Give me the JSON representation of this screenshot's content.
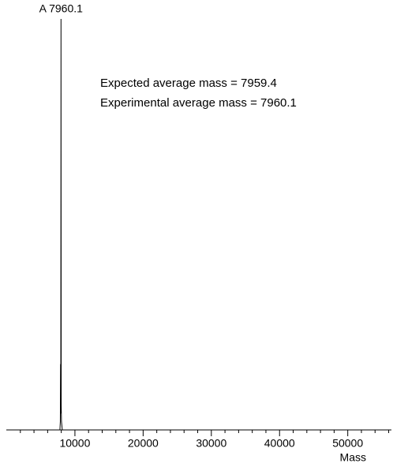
{
  "chart_data": {
    "type": "line",
    "peak_label": "A 7960.1",
    "annotations": [
      "Expected average mass = 7959.4",
      "Experimental average mass = 7960.1"
    ],
    "x_label": "Mass",
    "series": [
      {
        "name": null,
        "color": "#000000",
        "x": [
          0,
          7800,
          7860,
          7900,
          7930,
          7960.1,
          7990,
          8030,
          8150,
          56400
        ],
        "values": [
          0,
          0,
          2,
          16,
          4,
          100,
          6,
          2,
          0,
          0
        ]
      }
    ],
    "xlim": [
      0,
      56400
    ],
    "ylim": [
      0,
      100
    ],
    "xticks": [
      10000,
      20000,
      30000,
      40000,
      50000
    ],
    "minor_xticks": [
      2000,
      4000,
      6000,
      8000,
      12000,
      14000,
      16000,
      18000,
      22000,
      24000,
      26000,
      28000,
      32000,
      34000,
      36000,
      38000,
      42000,
      44000,
      46000,
      48000,
      52000,
      54000,
      56000
    ]
  }
}
